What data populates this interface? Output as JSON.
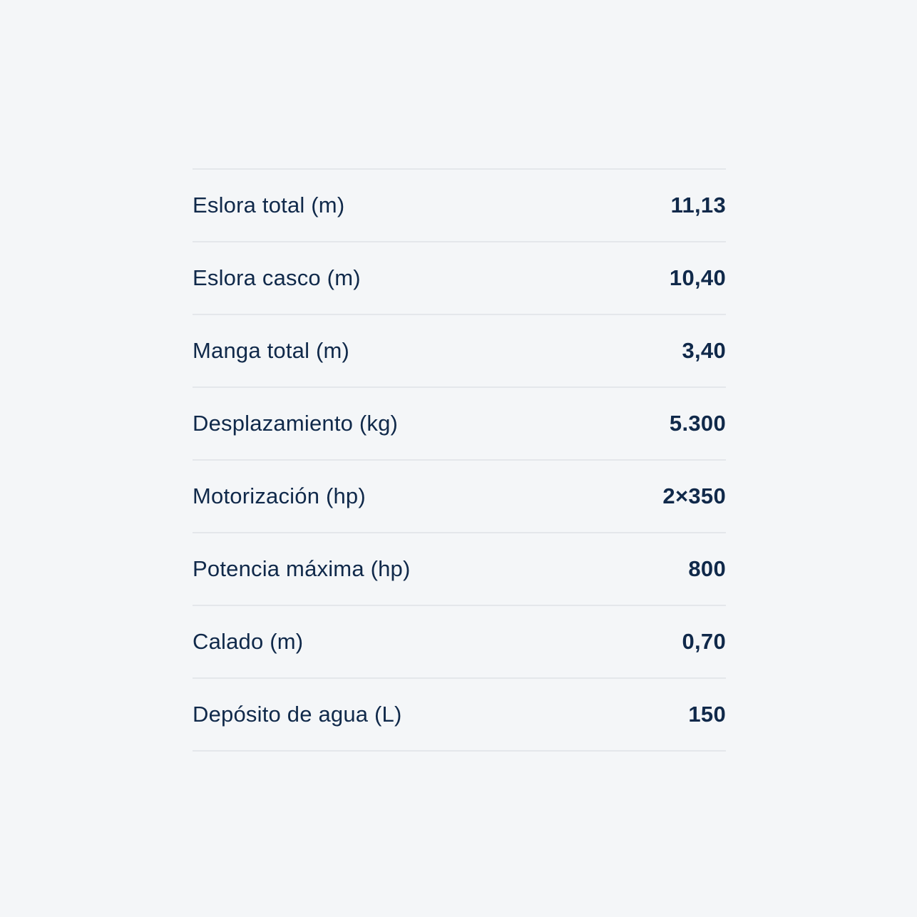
{
  "specs": [
    {
      "label": "Eslora total (m)",
      "value": "11,13"
    },
    {
      "label": "Eslora casco (m)",
      "value": "10,40"
    },
    {
      "label": "Manga total (m)",
      "value": "3,40"
    },
    {
      "label": "Desplazamiento (kg)",
      "value": "5.300"
    },
    {
      "label": "Motorización (hp)",
      "value": "2×350"
    },
    {
      "label": "Potencia máxima (hp)",
      "value": "800"
    },
    {
      "label": "Calado (m)",
      "value": "0,70"
    },
    {
      "label": "Depósito de agua (L)",
      "value": "150"
    }
  ],
  "colors": {
    "background": "#f4f6f8",
    "text": "#10294a",
    "divider": "#e4e7eb"
  }
}
